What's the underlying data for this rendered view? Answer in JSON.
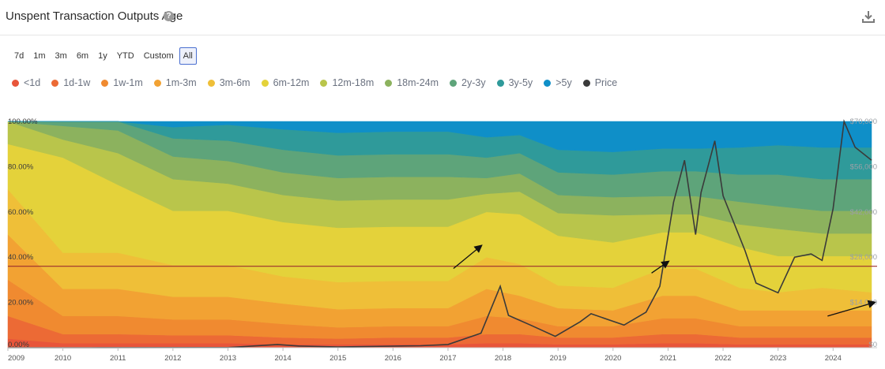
{
  "header": {
    "title": "Unspent Transaction Outputs Age",
    "help_icon": "question-circle-icon",
    "download_icon": "download-icon"
  },
  "range_buttons": [
    "7d",
    "1m",
    "3m",
    "6m",
    "1y",
    "YTD",
    "Custom",
    "All"
  ],
  "range_selected": "All",
  "chart_data": {
    "type": "area",
    "stacked_percent": true,
    "title": "Unspent Transaction Outputs Age",
    "x_ticks": [
      "2009",
      "2010",
      "2011",
      "2012",
      "2013",
      "2014",
      "2015",
      "2016",
      "2017",
      "2018",
      "2019",
      "2020",
      "2021",
      "2022",
      "2023",
      "2024"
    ],
    "y_left_ticks": [
      "0.00%",
      "20.00%",
      "40.00%",
      "60.00%",
      "80.00%",
      "100.00%"
    ],
    "y_left_range": [
      0,
      100
    ],
    "y_right_ticks": [
      "$0",
      "$14,000",
      "$28,000",
      "$42,000",
      "$56,000",
      "$70,000"
    ],
    "y_right_range": [
      0,
      70000
    ],
    "legend_position": "top-left",
    "x": [
      2009.0,
      2010.0,
      2011.0,
      2012.0,
      2013.0,
      2014.0,
      2015.0,
      2016.0,
      2017.0,
      2017.7,
      2018.3,
      2019.0,
      2020.0,
      2020.9,
      2021.5,
      2022.3,
      2023.0,
      2023.8,
      2024.7
    ],
    "series": [
      {
        "name": "<1d",
        "color": "#e8553a",
        "values": [
          4,
          2,
          2,
          2,
          2,
          1.5,
          1.5,
          1.5,
          1.5,
          2,
          2,
          1.5,
          1.5,
          2,
          2,
          1.5,
          1.5,
          1.5,
          1.5
        ]
      },
      {
        "name": "1d-1w",
        "color": "#ec6a35",
        "values": [
          10,
          4,
          4,
          3.5,
          3.5,
          3,
          2.5,
          3,
          3,
          4,
          4,
          3,
          3,
          4,
          4,
          3,
          3,
          3,
          3
        ]
      },
      {
        "name": "1w-1m",
        "color": "#f08a30",
        "values": [
          16,
          8,
          8,
          7,
          7,
          6,
          5,
          5,
          5,
          8,
          7,
          5,
          5,
          7,
          7,
          5,
          5,
          5,
          5
        ]
      },
      {
        "name": "1m-3m",
        "color": "#f2a233",
        "values": [
          20,
          12,
          12,
          10,
          10,
          9,
          8,
          8,
          8,
          12,
          10,
          8,
          7,
          10,
          10,
          7,
          7,
          7,
          7
        ]
      },
      {
        "name": "3m-6m",
        "color": "#efbf38",
        "values": [
          20,
          16,
          16,
          14,
          14,
          12,
          12,
          12,
          12,
          14,
          14,
          10,
          10,
          12,
          12,
          10,
          8,
          10,
          8
        ]
      },
      {
        "name": "6m-12m",
        "color": "#e4d23a",
        "values": [
          20,
          42,
          30,
          24,
          24,
          24,
          24,
          24,
          24,
          20,
          22,
          22,
          20,
          16,
          16,
          18,
          16,
          14,
          16
        ]
      },
      {
        "name": "12m-18m",
        "color": "#b9c54b",
        "values": [
          10,
          8,
          14,
          14,
          12,
          12,
          12,
          12,
          12,
          8,
          10,
          10,
          12,
          8,
          8,
          10,
          12,
          10,
          10
        ]
      },
      {
        "name": "18m-24m",
        "color": "#8cb25e",
        "values": [
          0,
          6,
          10,
          10,
          10,
          10,
          10,
          10,
          10,
          7,
          8,
          8,
          8,
          8,
          8,
          10,
          10,
          10,
          10
        ]
      },
      {
        "name": "2y-3y",
        "color": "#5ea47a",
        "values": [
          0,
          2,
          4,
          8,
          9,
          10,
          10,
          10,
          10,
          9,
          9,
          10,
          10,
          11,
          11,
          12,
          14,
          14,
          14
        ]
      },
      {
        "name": "3y-5y",
        "color": "#2f9a9a",
        "values": [
          0,
          0,
          0,
          5,
          7,
          9,
          10,
          10,
          10,
          9,
          8,
          10,
          10,
          10,
          10,
          12,
          13,
          14,
          14
        ]
      },
      {
        "name": ">5y",
        "color": "#0f8fc8",
        "values": [
          0,
          0,
          0,
          2.5,
          1.5,
          3.5,
          5,
          4.5,
          4.5,
          7,
          6,
          12.5,
          13.5,
          12,
          12,
          11.5,
          10.5,
          11.5,
          11.5
        ]
      }
    ],
    "price_series": {
      "name": "Price",
      "color": "#3a3a3a",
      "x": [
        2009.0,
        2010.5,
        2013.0,
        2013.9,
        2014.3,
        2015.0,
        2016.5,
        2017.0,
        2017.6,
        2017.95,
        2018.1,
        2018.5,
        2018.95,
        2019.4,
        2019.6,
        2020.2,
        2020.6,
        2020.85,
        2021.1,
        2021.3,
        2021.5,
        2021.6,
        2021.85,
        2022.0,
        2022.4,
        2022.6,
        2023.0,
        2023.3,
        2023.6,
        2023.8,
        2024.0,
        2024.2,
        2024.4,
        2024.7
      ],
      "values": [
        0,
        0,
        50,
        1000,
        500,
        250,
        600,
        1000,
        4500,
        19000,
        10000,
        7000,
        3500,
        8000,
        10500,
        7000,
        11000,
        19000,
        45000,
        58000,
        35000,
        48000,
        64000,
        47000,
        30000,
        20000,
        17000,
        28000,
        29000,
        27000,
        43000,
        70000,
        62000,
        58000
      ]
    },
    "reference_line": {
      "value_pct": 36,
      "color": "#9b2e2e"
    },
    "annotations": [
      {
        "type": "arrow",
        "from": [
          2017.1,
          35
        ],
        "to": [
          2017.6,
          45
        ]
      },
      {
        "type": "arrow",
        "from": [
          2020.7,
          33
        ],
        "to": [
          2021.0,
          38
        ]
      },
      {
        "type": "arrow",
        "from": [
          2023.9,
          14
        ],
        "to": [
          2024.75,
          20
        ]
      }
    ]
  }
}
